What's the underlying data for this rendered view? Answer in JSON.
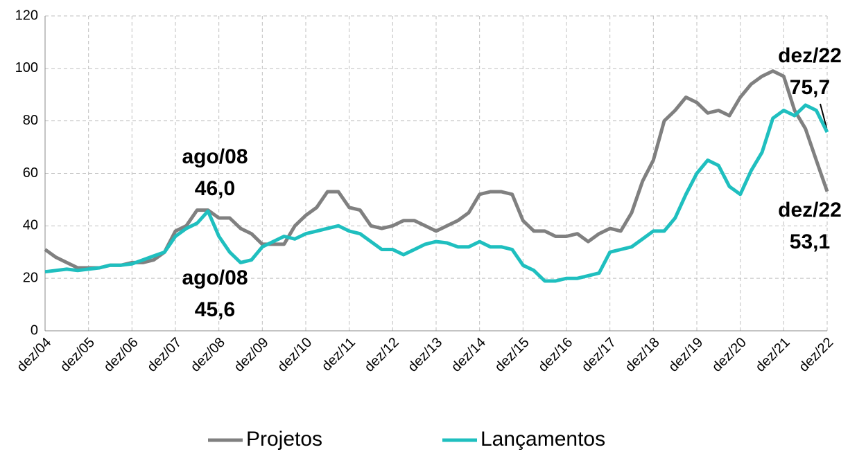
{
  "chart_data": {
    "type": "line",
    "categories": [
      "dez/04",
      null,
      null,
      null,
      "dez/05",
      null,
      null,
      null,
      "dez/06",
      null,
      null,
      null,
      "dez/07",
      null,
      null,
      null,
      "dez/08",
      null,
      null,
      null,
      "dez/09",
      null,
      null,
      null,
      "dez/10",
      null,
      null,
      null,
      "dez/11",
      null,
      null,
      null,
      "dez/12",
      null,
      null,
      null,
      "dez/13",
      null,
      null,
      null,
      "dez/14",
      null,
      null,
      null,
      "dez/15",
      null,
      null,
      null,
      "dez/16",
      null,
      null,
      null,
      "dez/17",
      null,
      null,
      null,
      "dez/18",
      null,
      null,
      null,
      "dez/19",
      null,
      null,
      null,
      "dez/20",
      null,
      null,
      null,
      "dez/21",
      null,
      null,
      null,
      "dez/22"
    ],
    "series": [
      {
        "name": "Projetos",
        "color": "#808080",
        "values": [
          31,
          28,
          26,
          24,
          24,
          24,
          25,
          25,
          26,
          26,
          27,
          30,
          38,
          40,
          46,
          46,
          43,
          43,
          39,
          37,
          33,
          33,
          33,
          40,
          44,
          47,
          53,
          53,
          47,
          46,
          40,
          39,
          40,
          42,
          42,
          40,
          38,
          40,
          42,
          45,
          52,
          53,
          53,
          52,
          42,
          38,
          38,
          36,
          36,
          37,
          34,
          37,
          39,
          38,
          45,
          57,
          65,
          80,
          84,
          89,
          87,
          83,
          84,
          82,
          89,
          94,
          97,
          99,
          97,
          84,
          77,
          65,
          53.1
        ]
      },
      {
        "name": "Lançamentos",
        "color": "#1fbfbf",
        "values": [
          22.5,
          23,
          23.5,
          23,
          23.5,
          24,
          25,
          25,
          25.5,
          27,
          28.5,
          30,
          36,
          39,
          41,
          45.6,
          36,
          30,
          26,
          27,
          32,
          34,
          36,
          35,
          37,
          38,
          39,
          40,
          38,
          37,
          34,
          31,
          31,
          29,
          31,
          33,
          34,
          33.5,
          32,
          32,
          34,
          32,
          32,
          31,
          25,
          23,
          19,
          19,
          20,
          20,
          21,
          22,
          30,
          31,
          32,
          35,
          38,
          38,
          43,
          52,
          60,
          65,
          63,
          55,
          52,
          61,
          68,
          81,
          84,
          82,
          86,
          84,
          75.7
        ]
      }
    ],
    "ylim": [
      0,
      120
    ],
    "yticks": [
      0,
      20,
      40,
      60,
      80,
      100,
      120
    ],
    "grid": true,
    "annotations": [
      {
        "lines": [
          "ago/08",
          "46,0"
        ],
        "color": "#808080"
      },
      {
        "lines": [
          "ago/08",
          "45,6"
        ],
        "color": "#0f8c8c"
      },
      {
        "lines": [
          "dez/22",
          "75,7"
        ],
        "color": "#0f8c8c"
      },
      {
        "lines": [
          "dez/22",
          "53,1"
        ],
        "color": "#808080"
      }
    ],
    "legend": "bottom"
  }
}
